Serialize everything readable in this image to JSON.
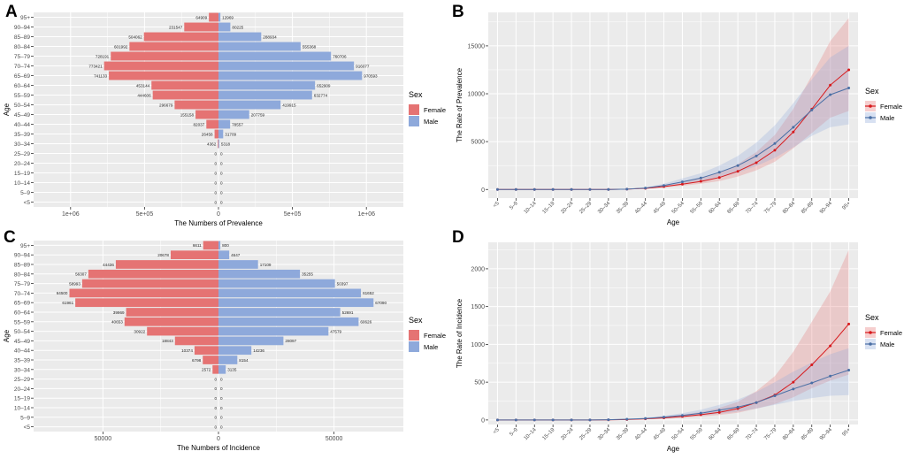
{
  "colors": {
    "female": "#e57373",
    "male": "#8ea9db",
    "female_line": "#d7191c",
    "male_line": "#4a6fa5",
    "panel_bg": "#ebebeb",
    "grid": "#ffffff"
  },
  "legend": {
    "title": "Sex",
    "female": "Female",
    "male": "Male"
  },
  "chart_data": [
    {
      "panel": "A",
      "type": "bar",
      "orientation": "horizontal-pyramid",
      "xlabel": "The Numbers of Prevalence",
      "ylabel": "Age",
      "xlim": [
        -1250000,
        1250000
      ],
      "xticks": [
        -1000000,
        -500000,
        0,
        500000,
        1000000
      ],
      "xtick_labels": [
        "1e+06",
        "5e+05",
        "0",
        "5e+05",
        "1e+06"
      ],
      "categories": [
        "<5",
        "5–9",
        "10–14",
        "15–19",
        "20–24",
        "25–29",
        "30–34",
        "35–39",
        "40–44",
        "45–49",
        "50–54",
        "55–59",
        "60–64",
        "65–69",
        "70–74",
        "75–79",
        "80–84",
        "85–89",
        "90–94",
        "95+"
      ],
      "series": [
        {
          "name": "Female",
          "values": [
            0,
            0,
            0,
            0,
            0,
            0,
            4362,
            26458,
            82037,
            155158,
            296679,
            444606,
            453144,
            741133,
            773421,
            728191,
            601992,
            504062,
            231547,
            64909
          ]
        },
        {
          "name": "Male",
          "values": [
            0,
            0,
            0,
            0,
            0,
            0,
            5318,
            31709,
            78557,
            207759,
            419915,
            632774,
            652909,
            970593,
            916077,
            760706,
            555368,
            288934,
            80225,
            12969
          ]
        }
      ],
      "value_labels": {
        "female": [
          "0",
          "0",
          "0",
          "0",
          "0",
          "0",
          "4362",
          "26458",
          "82037",
          "155158",
          "296679",
          "444606",
          "453144",
          "741133",
          "773421",
          "728191",
          "601992",
          "504062",
          "231547",
          "64909"
        ],
        "male": [
          "0",
          "0",
          "0",
          "0",
          "0",
          "0",
          "5318",
          "31709",
          "78557",
          "207759",
          "419915",
          "632774",
          "652909",
          "970593",
          "916077",
          "760706",
          "555368",
          "288934",
          "80225",
          "12969"
        ]
      }
    },
    {
      "panel": "B",
      "type": "line",
      "xlabel": "Age",
      "ylabel": "The Rate of Prevalence",
      "ylim": [
        -900,
        18500
      ],
      "yticks": [
        0,
        5000,
        10000,
        15000
      ],
      "ytick_labels": [
        "0",
        "5000",
        "10000",
        "15000"
      ],
      "categories": [
        "<5",
        "5–9",
        "10–14",
        "15–19",
        "20–24",
        "25–29",
        "30–34",
        "35–39",
        "40–44",
        "45–49",
        "50–54",
        "55–59",
        "60–64",
        "65–69",
        "70–74",
        "75–79",
        "80–84",
        "85–89",
        "90–94",
        "95+"
      ],
      "series": [
        {
          "name": "Female",
          "values": [
            0,
            0,
            0,
            0,
            0,
            0,
            5,
            30,
            120,
            300,
            560,
            850,
            1250,
            1900,
            2800,
            4100,
            6000,
            8400,
            10900,
            12500
          ],
          "lower": [
            0,
            0,
            0,
            0,
            0,
            0,
            3,
            20,
            80,
            200,
            380,
            600,
            880,
            1350,
            2000,
            2900,
            4300,
            5900,
            7500,
            8200
          ],
          "upper": [
            0,
            0,
            0,
            0,
            0,
            0,
            8,
            40,
            170,
            430,
            780,
            1200,
            1750,
            2650,
            3900,
            5700,
            8400,
            11900,
            15500,
            17900
          ]
        },
        {
          "name": "Male",
          "values": [
            0,
            0,
            0,
            0,
            0,
            0,
            5,
            35,
            150,
            420,
            800,
            1200,
            1800,
            2500,
            3500,
            4800,
            6500,
            8300,
            9900,
            10600
          ],
          "lower": [
            0,
            0,
            0,
            0,
            0,
            0,
            3,
            25,
            100,
            280,
            540,
            820,
            1250,
            1750,
            2450,
            3300,
            4400,
            5600,
            6500,
            6800
          ],
          "upper": [
            0,
            0,
            0,
            0,
            0,
            0,
            8,
            50,
            210,
            600,
            1150,
            1700,
            2500,
            3500,
            4900,
            6700,
            9000,
            11500,
            13800,
            15000
          ]
        }
      ]
    },
    {
      "panel": "C",
      "type": "bar",
      "orientation": "horizontal-pyramid",
      "xlabel": "The Numbers of Incidence",
      "ylabel": "Age",
      "xlim": [
        -80000,
        80000
      ],
      "xticks": [
        -50000,
        0,
        50000
      ],
      "xtick_labels": [
        "50000",
        "0",
        "50000"
      ],
      "categories": [
        "<5",
        "5–9",
        "10–14",
        "15–19",
        "20–24",
        "25–29",
        "30–34",
        "35–39",
        "40–44",
        "45–49",
        "50–54",
        "55–59",
        "60–64",
        "65–69",
        "70–74",
        "75–79",
        "80–84",
        "85–89",
        "90–94",
        "95+"
      ],
      "series": [
        {
          "name": "Female",
          "values": [
            0,
            0,
            0,
            0,
            0,
            0,
            2572,
            6798,
            10374,
            18843,
            30922,
            40653,
            39969,
            61961,
            64500,
            58993,
            56307,
            44436,
            20678,
            6611
          ]
        },
        {
          "name": "Male",
          "values": [
            0,
            0,
            0,
            0,
            0,
            0,
            3135,
            8154,
            14236,
            28097,
            47579,
            60626,
            52691,
            67090,
            61652,
            50397,
            35255,
            17109,
            4647,
            800
          ]
        }
      ],
      "value_labels": {
        "female": [
          "0",
          "0",
          "0",
          "0",
          "0",
          "0",
          "2572",
          "6798",
          "10374",
          "18843",
          "30922",
          "40653",
          "39969",
          "61961",
          "64500",
          "58993",
          "56307",
          "44436",
          "20678",
          "6611"
        ],
        "male": [
          "0",
          "0",
          "0",
          "0",
          "0",
          "0",
          "3135",
          "8154",
          "14236",
          "28097",
          "47579",
          "60626",
          "52691",
          "67090",
          "61652",
          "50397",
          "35255",
          "17109",
          "4647",
          "800"
        ]
      }
    },
    {
      "panel": "D",
      "type": "line",
      "xlabel": "Age",
      "ylabel": "The Rate of Incidence",
      "ylim": [
        -60,
        2350
      ],
      "yticks": [
        0,
        500,
        1000,
        1500,
        2000
      ],
      "ytick_labels": [
        "0",
        "500",
        "1000",
        "1500",
        "2000"
      ],
      "categories": [
        "<5",
        "5–9",
        "10–14",
        "15–19",
        "20–24",
        "25–29",
        "30–34",
        "35–39",
        "40–44",
        "45–49",
        "50–54",
        "55–59",
        "60–64",
        "65–69",
        "70–74",
        "75–79",
        "80–84",
        "85–89",
        "90–94",
        "95+"
      ],
      "series": [
        {
          "name": "Female",
          "values": [
            0,
            0,
            0,
            0,
            0,
            0,
            2,
            6,
            15,
            28,
            45,
            70,
            100,
            150,
            230,
            330,
            500,
            730,
            980,
            1270
          ],
          "lower": [
            0,
            0,
            0,
            0,
            0,
            0,
            1,
            4,
            10,
            18,
            30,
            45,
            65,
            95,
            150,
            210,
            300,
            420,
            520,
            600
          ],
          "upper": [
            0,
            0,
            0,
            0,
            0,
            0,
            3,
            9,
            22,
            42,
            70,
            105,
            160,
            240,
            380,
            580,
            900,
            1300,
            1700,
            2250
          ]
        },
        {
          "name": "Male",
          "values": [
            0,
            0,
            0,
            0,
            0,
            0,
            3,
            10,
            20,
            38,
            60,
            90,
            130,
            170,
            230,
            320,
            410,
            490,
            580,
            660
          ],
          "lower": [
            0,
            0,
            0,
            0,
            0,
            0,
            2,
            6,
            12,
            25,
            40,
            58,
            82,
            110,
            150,
            200,
            250,
            290,
            320,
            330
          ],
          "upper": [
            0,
            0,
            0,
            0,
            0,
            0,
            4,
            14,
            30,
            55,
            90,
            135,
            200,
            270,
            370,
            500,
            640,
            760,
            870,
            950
          ]
        }
      ]
    }
  ]
}
